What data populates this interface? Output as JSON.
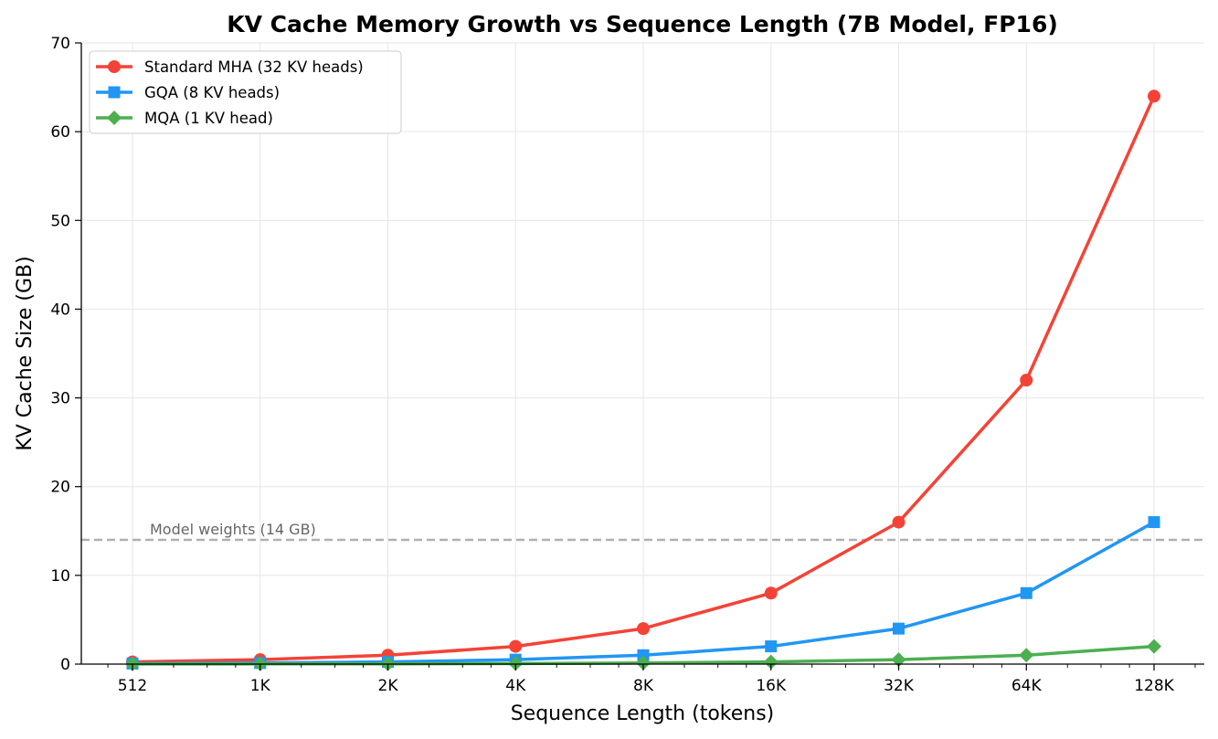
{
  "chart_data": {
    "type": "line",
    "title": "KV Cache Memory Growth vs Sequence Length (7B Model, FP16)",
    "xlabel": "Sequence Length (tokens)",
    "ylabel": "KV Cache Size (GB)",
    "x_scale": "log2",
    "x": [
      512,
      1024,
      2048,
      4096,
      8192,
      16384,
      32768,
      65536,
      131072
    ],
    "x_tick_labels": [
      "512",
      "1K",
      "2K",
      "4K",
      "8K",
      "16K",
      "32K",
      "64K",
      "128K"
    ],
    "ylim": [
      0,
      70
    ],
    "y_ticks": [
      0,
      10,
      20,
      30,
      40,
      50,
      60,
      70
    ],
    "grid": true,
    "legend_position": "top-left",
    "series": [
      {
        "name": "Standard MHA (32 KV heads)",
        "color": "#f44336",
        "marker": "circle",
        "values": [
          0.25,
          0.5,
          1,
          2,
          4,
          8,
          16,
          32,
          64
        ]
      },
      {
        "name": "GQA (8 KV heads)",
        "color": "#2196f3",
        "marker": "square",
        "values": [
          0.0625,
          0.125,
          0.25,
          0.5,
          1,
          2,
          4,
          8,
          16
        ]
      },
      {
        "name": "MQA (1 KV head)",
        "color": "#4caf50",
        "marker": "diamond",
        "values": [
          0.0078,
          0.0156,
          0.03125,
          0.0625,
          0.125,
          0.25,
          0.5,
          1,
          2
        ]
      }
    ],
    "reference_line": {
      "y": 14,
      "label": "Model weights (14 GB)",
      "color": "#b0b0b0"
    }
  }
}
